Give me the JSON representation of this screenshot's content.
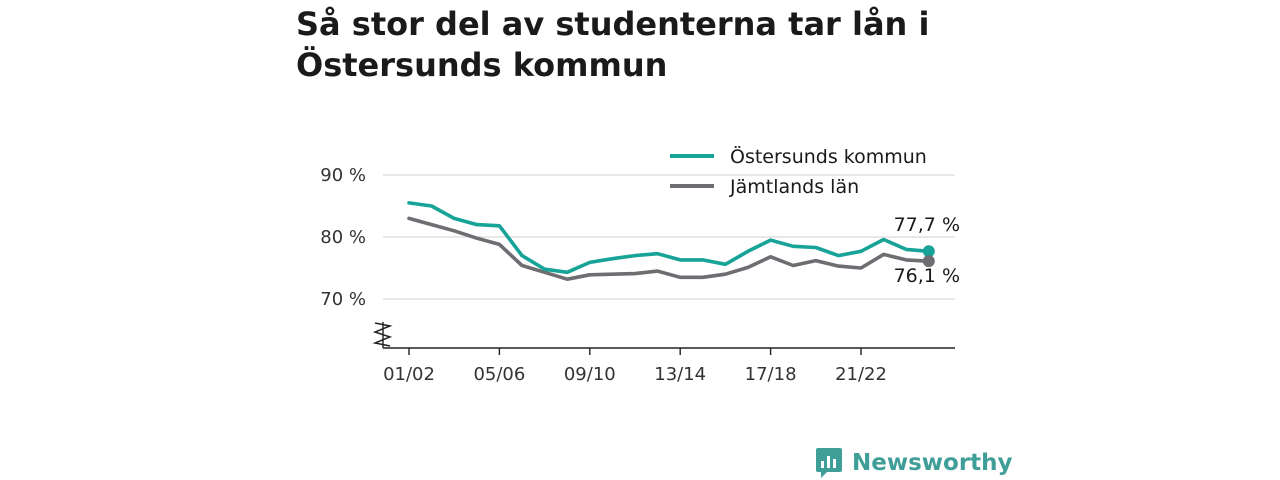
{
  "title": "Så stor del av studenterna tar lån i Östersunds kommun",
  "brand": {
    "name": "Newsworthy",
    "icon": "newsworthy-logo-icon",
    "color": "#3f9e97"
  },
  "chart_data": {
    "type": "line",
    "x": [
      "01/02",
      "02/03",
      "03/04",
      "04/05",
      "05/06",
      "06/07",
      "07/08",
      "08/09",
      "09/10",
      "10/11",
      "11/12",
      "12/13",
      "13/14",
      "14/15",
      "15/16",
      "16/17",
      "17/18",
      "18/19",
      "19/20",
      "20/21",
      "21/22",
      "22/23",
      "23/24",
      "24/25"
    ],
    "x_tick_labels": [
      "01/02",
      "05/06",
      "09/10",
      "13/14",
      "17/18",
      "21/22"
    ],
    "y_ticks": [
      70,
      80,
      90
    ],
    "y_tick_labels": [
      "70 %",
      "80 %",
      "90 %"
    ],
    "ylim": [
      62,
      93
    ],
    "grid": true,
    "legend": "top-right",
    "series": [
      {
        "name": "Östersunds kommun",
        "color": "#17a398",
        "values": [
          85.5,
          85.0,
          83.0,
          82.0,
          81.8,
          77.0,
          74.8,
          74.3,
          75.9,
          76.5,
          77.0,
          77.3,
          76.3,
          76.3,
          75.6,
          77.7,
          79.5,
          78.5,
          78.3,
          77.0,
          77.7,
          79.6,
          78.0,
          77.7
        ],
        "end_label": "77,7 %"
      },
      {
        "name": "Jämtlands län",
        "color": "#6d6d72",
        "values": [
          83.0,
          82.0,
          81.0,
          79.8,
          78.8,
          75.4,
          74.3,
          73.2,
          73.9,
          74.0,
          74.1,
          74.5,
          73.5,
          73.5,
          74.0,
          75.1,
          76.8,
          75.4,
          76.2,
          75.3,
          75.0,
          77.2,
          76.3,
          76.1
        ],
        "end_label": "76,1 %"
      }
    ]
  }
}
